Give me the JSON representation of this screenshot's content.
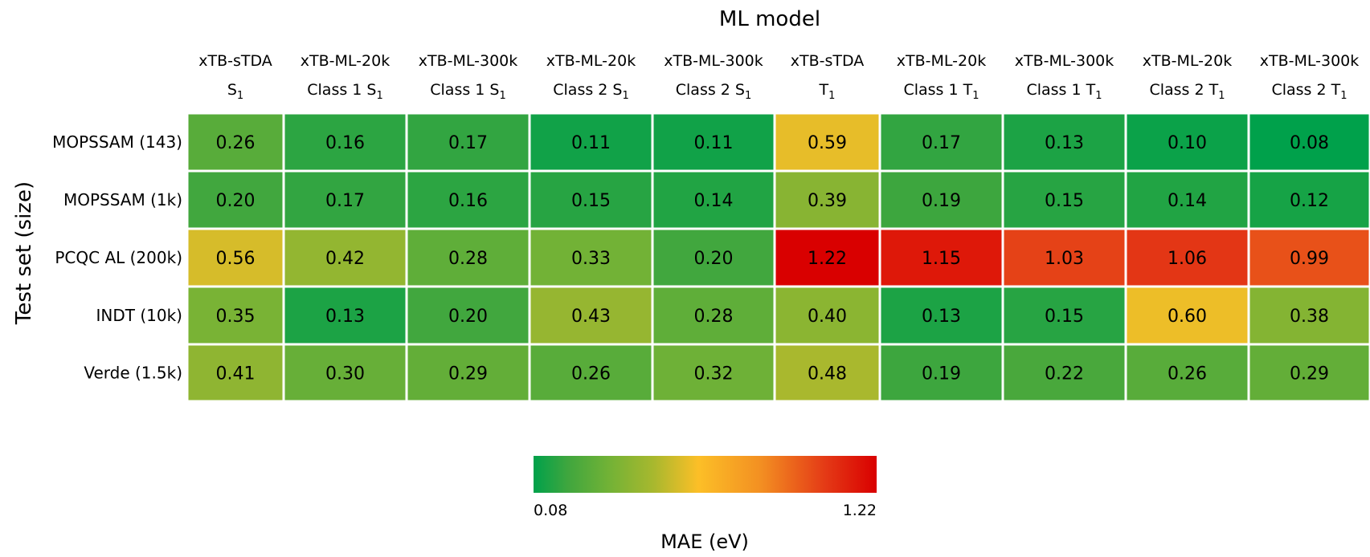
{
  "chart_data": {
    "type": "heatmap",
    "title": "",
    "xlabel": "ML model",
    "ylabel": "Test set (size)",
    "columns": [
      {
        "line1": "xTB-sTDA",
        "line2": "S",
        "sub": "1"
      },
      {
        "line1": "xTB-ML-20k",
        "line2": "Class 1 S",
        "sub": "1"
      },
      {
        "line1": "xTB-ML-300k",
        "line2": "Class 1 S",
        "sub": "1"
      },
      {
        "line1": "xTB-ML-20k",
        "line2": "Class 2 S",
        "sub": "1"
      },
      {
        "line1": "xTB-ML-300k",
        "line2": "Class 2 S",
        "sub": "1"
      },
      {
        "line1": "xTB-sTDA",
        "line2": "T",
        "sub": "1"
      },
      {
        "line1": "xTB-ML-20k",
        "line2": "Class 1 T",
        "sub": "1"
      },
      {
        "line1": "xTB-ML-300k",
        "line2": "Class 1 T",
        "sub": "1"
      },
      {
        "line1": "xTB-ML-20k",
        "line2": "Class 2 T",
        "sub": "1"
      },
      {
        "line1": "xTB-ML-300k",
        "line2": "Class 2 T",
        "sub": "1"
      }
    ],
    "rows": [
      "MOPSSAM (143)",
      "MOPSSAM (1k)",
      "PCQC AL (200k)",
      "INDT (10k)",
      "Verde (1.5k)"
    ],
    "values": [
      [
        0.26,
        0.16,
        0.17,
        0.11,
        0.11,
        0.59,
        0.17,
        0.13,
        0.1,
        0.08
      ],
      [
        0.2,
        0.17,
        0.16,
        0.15,
        0.14,
        0.39,
        0.19,
        0.15,
        0.14,
        0.12
      ],
      [
        0.56,
        0.42,
        0.28,
        0.33,
        0.2,
        1.22,
        1.15,
        1.03,
        1.06,
        0.99
      ],
      [
        0.35,
        0.13,
        0.2,
        0.43,
        0.28,
        0.4,
        0.13,
        0.15,
        0.6,
        0.38
      ],
      [
        0.41,
        0.3,
        0.29,
        0.26,
        0.32,
        0.48,
        0.19,
        0.22,
        0.26,
        0.29
      ]
    ],
    "colorbar": {
      "label": "MAE (eV)",
      "min": 0.08,
      "max": 1.22,
      "min_label": "0.08",
      "max_label": "1.22",
      "colors": [
        "#00a14b",
        "#72b236",
        "#fcbf27",
        "#f39022",
        "#e43a16",
        "#d90000"
      ]
    }
  }
}
